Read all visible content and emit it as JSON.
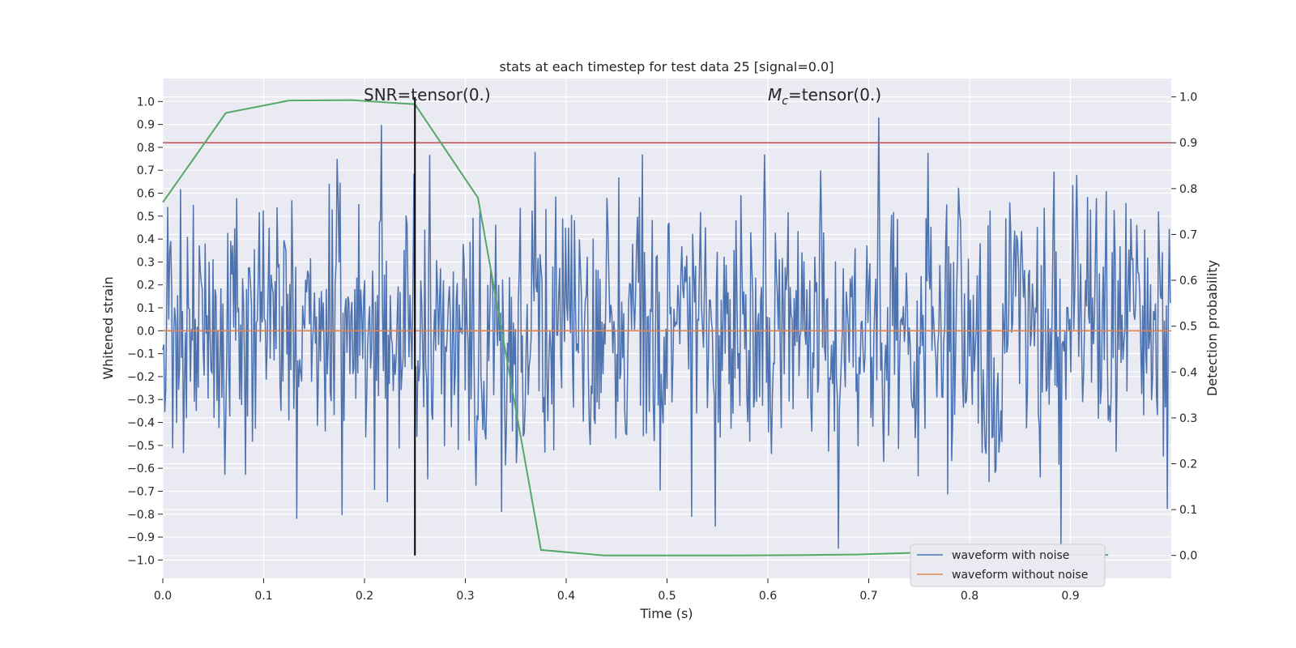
{
  "chart_data": {
    "type": "line",
    "title": "stats at each timestep for test data 25 [signal=0.0]",
    "xlabel": "Time (s)",
    "ylabel_left": "Whitened strain",
    "ylabel_right": "Detection probability",
    "xlim": [
      0,
      1.0
    ],
    "ylim_left": [
      -1.08,
      1.1
    ],
    "ylim_right": [
      -0.05,
      1.04
    ],
    "x_ticks": [
      "0.0",
      "0.1",
      "0.2",
      "0.3",
      "0.4",
      "0.5",
      "0.6",
      "0.7",
      "0.8",
      "0.9"
    ],
    "y_ticks_left": [
      "1.0",
      "0.9",
      "0.8",
      "0.7",
      "0.6",
      "0.5",
      "0.4",
      "0.3",
      "0.2",
      "0.1",
      "0.0",
      "-0.1",
      "-0.2",
      "-0.3",
      "-0.4",
      "-0.5",
      "-0.6",
      "-0.7",
      "-0.8",
      "-0.9",
      "-1.0"
    ],
    "y_ticks_right": [
      "1.0",
      "0.9",
      "0.8",
      "0.7",
      "0.6",
      "0.5",
      "0.4",
      "0.3",
      "0.2",
      "0.1",
      "0.0"
    ],
    "annotations": {
      "snr": "SNR=tensor(0.)",
      "mc_symbol": "M",
      "mc_sub": "c",
      "mc_value": "=tensor(0.)"
    },
    "event_time": 0.25,
    "threshold_right": 0.9,
    "series": [
      {
        "name": "waveform with noise",
        "axis": "left",
        "color": "#4c72b0",
        "style": "noisy",
        "note_points": 1024
      },
      {
        "name": "waveform without noise",
        "axis": "left",
        "color": "#dd8452",
        "x": [
          0,
          1.0
        ],
        "y": [
          0,
          0
        ]
      },
      {
        "axis": "right",
        "color": "#55a868",
        "x": [
          0,
          0.0625,
          0.125,
          0.1875,
          0.25,
          0.3125,
          0.375,
          0.4375,
          0.5,
          0.5625,
          0.625,
          0.6875,
          0.75,
          0.8125,
          0.875,
          0.9375
        ],
        "y": [
          0.77,
          0.965,
          0.992,
          0.993,
          0.984,
          0.78,
          0.012,
          0.0,
          0.0,
          0.0,
          0.0005,
          0.002,
          0.006,
          0.003,
          0.002,
          0.001
        ]
      }
    ],
    "legend_position": "bottom-right",
    "grid": true,
    "colors": {
      "background": "#eaeaf2",
      "threshold": "#c44e52",
      "event": "#000000"
    }
  }
}
